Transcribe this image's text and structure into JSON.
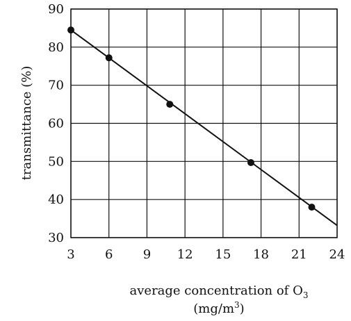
{
  "chart_data": {
    "type": "scatter",
    "title": "",
    "xlabel": {
      "line1_prefix": "average concentration of O",
      "line1_sub": "3",
      "line2_prefix": "(mg/m",
      "line2_sup": "3",
      "line2_suffix": ")"
    },
    "ylabel": "transmittance (%)",
    "xlim": [
      3,
      24
    ],
    "ylim": [
      30,
      90
    ],
    "xticks": [
      3,
      6,
      9,
      12,
      15,
      18,
      21,
      24
    ],
    "yticks": [
      30,
      40,
      50,
      60,
      70,
      80,
      90
    ],
    "grid": true,
    "legend": "none",
    "series": [
      {
        "points": [
          {
            "x": 3,
            "y": 84.5
          },
          {
            "x": 6,
            "y": 77.2
          },
          {
            "x": 10.8,
            "y": 65.0
          },
          {
            "x": 17.2,
            "y": 49.7
          },
          {
            "x": 22,
            "y": 38.0
          }
        ],
        "fit_line": {
          "from": {
            "x": 3,
            "y": 84.5
          },
          "to": {
            "x": 24,
            "y": 33.2
          }
        }
      }
    ]
  }
}
